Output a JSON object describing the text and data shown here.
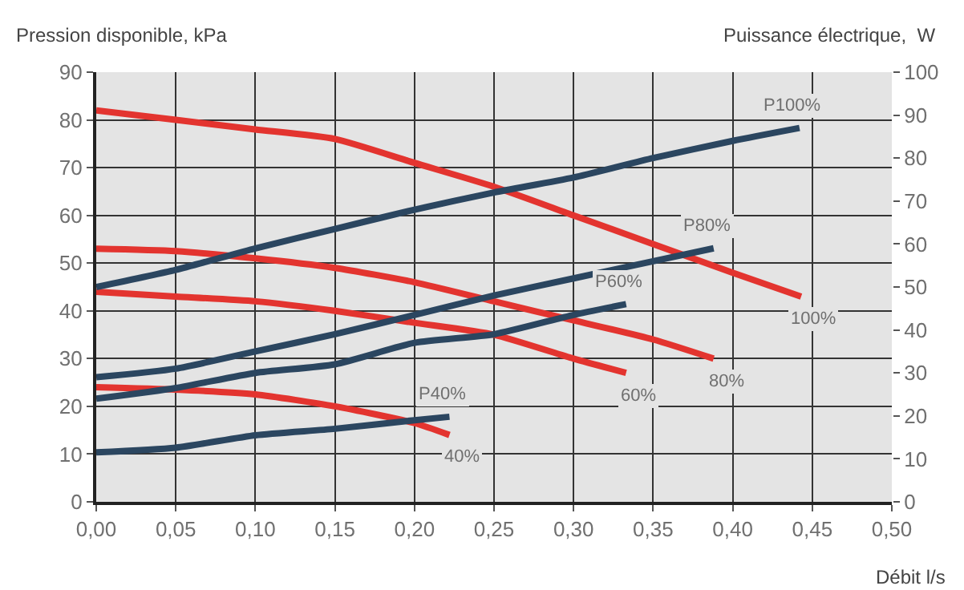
{
  "chart_data": {
    "type": "line",
    "xlabel": "Débit l/s",
    "ylabel": "Pression disponible, kPa",
    "y2label": "Puissance électrique,  W",
    "series": [
      {
        "name": "100%",
        "color": "#e3342f",
        "x": [
          0,
          0.05,
          0.1,
          0.15,
          0.2,
          0.25,
          0.3,
          0.35,
          0.4,
          0.443
        ],
        "values": [
          82,
          80,
          78,
          76,
          71,
          66,
          60,
          54,
          48,
          43
        ]
      },
      {
        "name": "80%",
        "color": "#e3342f",
        "x": [
          0,
          0.05,
          0.1,
          0.15,
          0.2,
          0.25,
          0.3,
          0.35,
          0.388
        ],
        "values": [
          53,
          52.5,
          51,
          49,
          46,
          42,
          38,
          34,
          30
        ]
      },
      {
        "name": "60%",
        "color": "#e3342f",
        "x": [
          0,
          0.05,
          0.1,
          0.15,
          0.2,
          0.25,
          0.3,
          0.333
        ],
        "values": [
          44,
          43,
          42,
          40,
          37.5,
          35,
          30,
          27
        ]
      },
      {
        "name": "40%",
        "color": "#e3342f",
        "x": [
          0,
          0.05,
          0.1,
          0.15,
          0.2,
          0.222
        ],
        "values": [
          24,
          23.5,
          22.5,
          20,
          16.5,
          14
        ]
      },
      {
        "name": "P100%",
        "color": "#2b4660",
        "axis": "y2",
        "x": [
          0,
          0.05,
          0.1,
          0.15,
          0.2,
          0.25,
          0.3,
          0.35,
          0.4,
          0.442
        ],
        "values": [
          50,
          54,
          59,
          63.5,
          68,
          72,
          75.5,
          80,
          84,
          87
        ]
      },
      {
        "name": "P80%",
        "color": "#2b4660",
        "axis": "y2",
        "x": [
          0,
          0.05,
          0.1,
          0.15,
          0.2,
          0.25,
          0.3,
          0.35,
          0.388
        ],
        "values": [
          29,
          31,
          35,
          39,
          43.5,
          48,
          52,
          56,
          59
        ]
      },
      {
        "name": "P60%",
        "color": "#2b4660",
        "axis": "y2",
        "x": [
          0,
          0.05,
          0.1,
          0.15,
          0.2,
          0.25,
          0.3,
          0.333
        ],
        "values": [
          24,
          26.5,
          30,
          32,
          37,
          39,
          43.5,
          46
        ]
      },
      {
        "name": "P40%",
        "color": "#2b4660",
        "axis": "y2",
        "x": [
          0,
          0.05,
          0.1,
          0.15,
          0.2,
          0.222
        ],
        "values": [
          11.5,
          12.6,
          15.5,
          17,
          19,
          19.8
        ]
      }
    ],
    "xlim": [
      0,
      0.5
    ],
    "xticks": [
      {
        "value": 0,
        "label": "0,00"
      },
      {
        "value": 0.05,
        "label": "0,05"
      },
      {
        "value": 0.1,
        "label": "0,10"
      },
      {
        "value": 0.15,
        "label": "0,15"
      },
      {
        "value": 0.2,
        "label": "0,20"
      },
      {
        "value": 0.25,
        "label": "0,25"
      },
      {
        "value": 0.3,
        "label": "0,30"
      },
      {
        "value": 0.35,
        "label": "0,35"
      },
      {
        "value": 0.4,
        "label": "0,40"
      },
      {
        "value": 0.45,
        "label": "0,45"
      },
      {
        "value": 0.5,
        "label": "0,50"
      }
    ],
    "ylim": [
      0,
      90
    ],
    "yticks": [
      0,
      10,
      20,
      30,
      40,
      50,
      60,
      70,
      80,
      90
    ],
    "y2lim": [
      0,
      100
    ],
    "y2ticks": [
      0,
      10,
      20,
      30,
      40,
      50,
      60,
      70,
      80,
      90,
      100
    ],
    "grid": true,
    "legend": false,
    "marker": "none",
    "line_style": "solid"
  }
}
